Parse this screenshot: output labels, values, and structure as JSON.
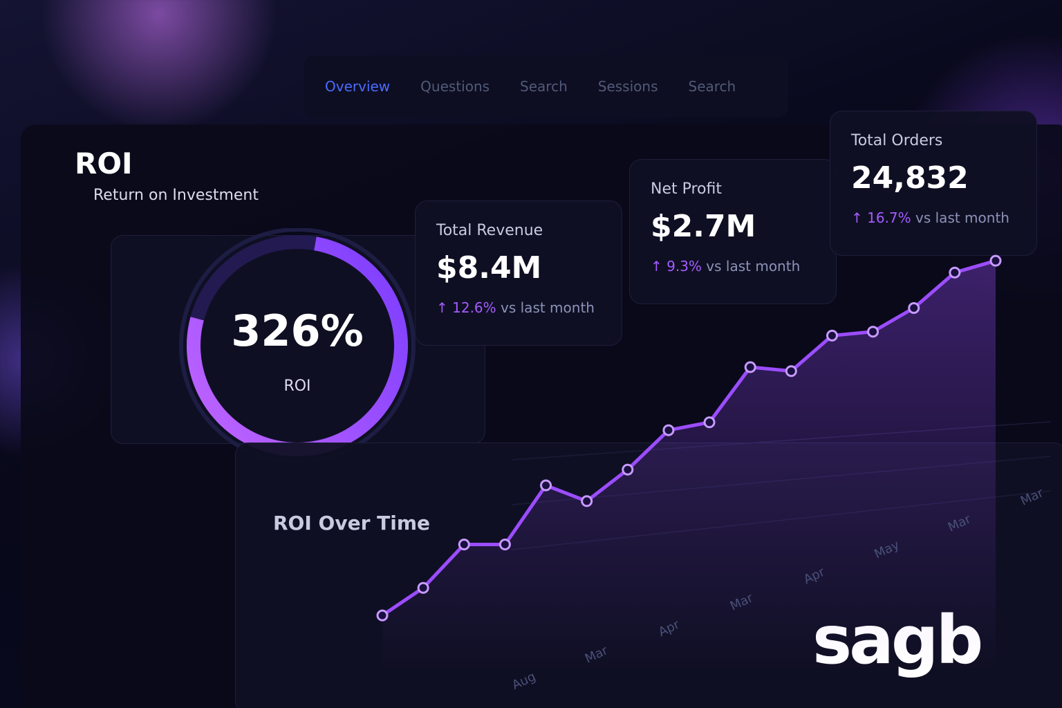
{
  "nav": [
    "Overview",
    "Questions",
    "Search",
    "Sessions",
    "Search"
  ],
  "header": {
    "title": "ROI",
    "subtitle": "Return on Investment"
  },
  "gauge": {
    "value": "326%",
    "label": "ROI"
  },
  "cards": [
    {
      "label": "Total Revenue",
      "value": "$8.4M",
      "change": "↑ 12.6%",
      "note": "vs last month"
    },
    {
      "label": "Net Profit",
      "value": "$2.7M",
      "change": "↑ 9.3%",
      "note": "vs last month"
    },
    {
      "label": "Total Orders",
      "value": "24,832",
      "change": "↑ 16.7%",
      "note": "vs last month"
    }
  ],
  "chart": {
    "type": "line",
    "title": "ROI Over Time",
    "x_labels": [
      "Aug",
      "Mar",
      "Apr",
      "Mar",
      "Apr",
      "May",
      "Mar",
      "Mar"
    ],
    "values": [
      7,
      14,
      25,
      25,
      40,
      36,
      44,
      54,
      56,
      70,
      69,
      78,
      79,
      85,
      94,
      97
    ],
    "ylim": [
      0,
      100
    ],
    "color": "#9b4dff"
  },
  "logo": "sagb"
}
